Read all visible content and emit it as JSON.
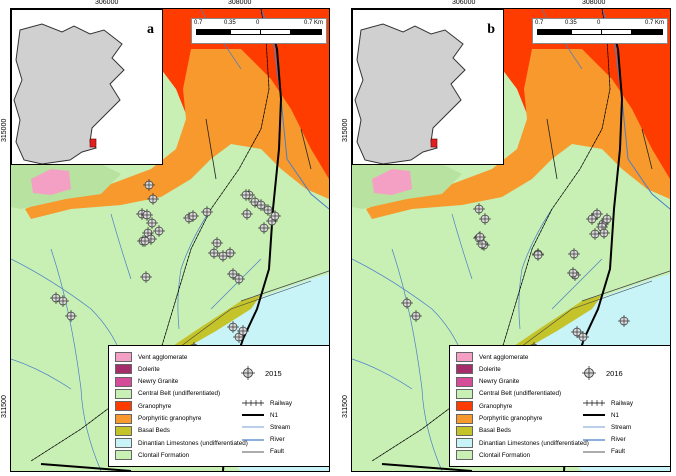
{
  "axes": {
    "x_ticks": [
      "306000",
      "308000"
    ],
    "y_ticks": [
      "315000",
      "311500"
    ]
  },
  "scale_bar": {
    "labels": [
      "0.7",
      "0.35",
      "0",
      "0.7 Km"
    ]
  },
  "panels": [
    {
      "letter": "a",
      "year": "2015"
    },
    {
      "letter": "b",
      "year": "2016"
    }
  ],
  "legend": {
    "geology": [
      {
        "label": "Vent agglomerate",
        "color": "#f4a0c4"
      },
      {
        "label": "Dolerite",
        "color": "#a52e6a"
      },
      {
        "label": "Newry Granite",
        "color": "#d64c98"
      },
      {
        "label": "Central Belt (undifferentiated)",
        "color": "#c8f0b4"
      },
      {
        "label": "Granophyre",
        "color": "#ff3c00"
      },
      {
        "label": "Porphyritic granophyre",
        "color": "#f7992c"
      },
      {
        "label": "Basal Beds",
        "color": "#c4c42a"
      },
      {
        "label": "Dinantian Limestones (undifferentiated)",
        "color": "#c8f4f8"
      },
      {
        "label": "Clontail Formation",
        "color": "#c8f0b4"
      }
    ],
    "lines": [
      {
        "label": "Railway",
        "type": "railway"
      },
      {
        "label": "N1",
        "type": "road"
      },
      {
        "label": "Stream",
        "type": "stream"
      },
      {
        "label": "River",
        "type": "river"
      },
      {
        "label": "Fault",
        "type": "fault"
      }
    ]
  },
  "colors": {
    "granophyre": "#ff3c00",
    "porphyritic": "#f7992c",
    "central_belt": "#c8f0b4",
    "limestone": "#c8f4f8",
    "basal": "#c4c42a",
    "newry": "#d64c98",
    "vent": "#f4a0c4",
    "stream": "#4a7ec8"
  },
  "sites_2015_count": 36,
  "sites_2016_count": 24
}
